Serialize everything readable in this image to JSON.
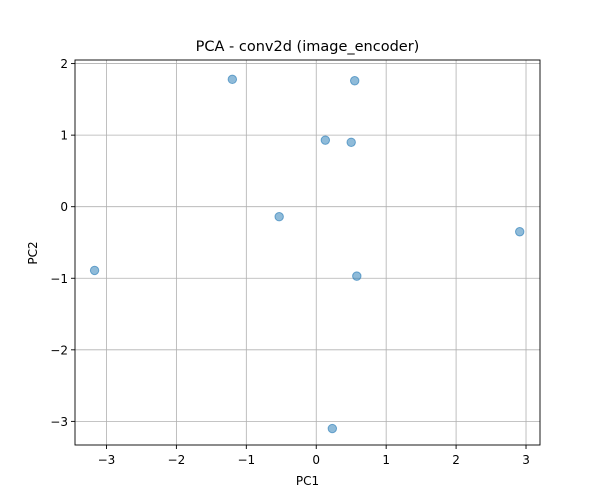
{
  "chart_data": {
    "type": "scatter",
    "title": "PCA - conv2d (image_encoder)",
    "xlabel": "PC1",
    "ylabel": "PC2",
    "xlim": [
      -3.45,
      3.2
    ],
    "ylim": [
      -3.33,
      2.05
    ],
    "xticks": [
      -3,
      -2,
      -1,
      0,
      1,
      2,
      3
    ],
    "yticks": [
      -3,
      -2,
      -1,
      0,
      1,
      2
    ],
    "grid": true,
    "points": [
      {
        "x": -1.2,
        "y": 1.78
      },
      {
        "x": 0.55,
        "y": 1.76
      },
      {
        "x": 0.13,
        "y": 0.93
      },
      {
        "x": 0.5,
        "y": 0.9
      },
      {
        "x": -0.53,
        "y": -0.14
      },
      {
        "x": 2.91,
        "y": -0.35
      },
      {
        "x": -3.17,
        "y": -0.89
      },
      {
        "x": 0.58,
        "y": -0.97
      },
      {
        "x": 0.23,
        "y": -3.1
      }
    ],
    "marker_color": "#1f77b4",
    "marker_alpha": 0.5
  }
}
